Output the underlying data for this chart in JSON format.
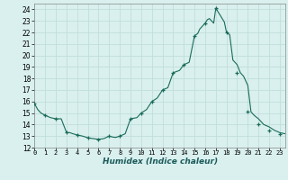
{
  "xlabel": "Humidex (Indice chaleur)",
  "x": [
    0,
    0.3,
    0.6,
    1,
    1.5,
    2,
    2.5,
    3,
    3.3,
    3.6,
    4,
    4.5,
    5,
    5.5,
    6,
    6.5,
    7,
    7.3,
    7.6,
    8,
    8.5,
    9,
    9.3,
    9.6,
    10,
    10.5,
    11,
    11.5,
    12,
    12.5,
    13,
    13.3,
    13.6,
    14,
    14.5,
    15,
    15.3,
    15.5,
    15.8,
    16,
    16.2,
    16.4,
    16.6,
    16.8,
    17,
    17.2,
    17.4,
    17.6,
    17.8,
    18,
    18.3,
    18.6,
    19,
    19.3,
    19.6,
    20,
    20.3,
    20.6,
    21,
    21.5,
    22,
    22.5,
    23,
    23.5
  ],
  "y": [
    15.8,
    15.3,
    15.0,
    14.8,
    14.6,
    14.5,
    14.5,
    13.3,
    13.3,
    13.2,
    13.1,
    13.0,
    12.85,
    12.78,
    12.72,
    12.78,
    13.0,
    12.92,
    12.88,
    13.0,
    13.2,
    14.5,
    14.55,
    14.6,
    15.0,
    15.3,
    16.0,
    16.3,
    17.0,
    17.2,
    18.5,
    18.6,
    18.7,
    19.2,
    19.4,
    21.7,
    21.9,
    22.3,
    22.6,
    22.8,
    23.1,
    23.2,
    23.0,
    22.8,
    24.1,
    23.8,
    23.5,
    23.2,
    22.9,
    22.0,
    21.8,
    19.6,
    19.2,
    18.5,
    18.2,
    17.4,
    15.1,
    14.8,
    14.5,
    14.0,
    13.8,
    13.5,
    13.3,
    13.2
  ],
  "marker_x": [
    0,
    1,
    2,
    3,
    4,
    5,
    6,
    7,
    8,
    9,
    10,
    11,
    12,
    13,
    14,
    15,
    16,
    17,
    18,
    19,
    20,
    21,
    22,
    23
  ],
  "marker_y": [
    15.8,
    14.8,
    14.5,
    13.3,
    13.1,
    12.85,
    12.72,
    13.0,
    13.0,
    14.5,
    15.0,
    16.0,
    17.0,
    18.5,
    19.2,
    21.7,
    22.8,
    24.1,
    22.0,
    18.5,
    15.1,
    14.0,
    13.5,
    13.2
  ],
  "line_color": "#1a6b5a",
  "bg_color": "#d9f0ee",
  "grid_major_color": "#c0dedd",
  "grid_minor_color": "#d0e9e8",
  "ylim": [
    12,
    24.5
  ],
  "xlim": [
    0,
    23.5
  ],
  "yticks": [
    12,
    13,
    14,
    15,
    16,
    17,
    18,
    19,
    20,
    21,
    22,
    23,
    24
  ],
  "xticks": [
    0,
    1,
    2,
    3,
    4,
    5,
    6,
    7,
    8,
    9,
    10,
    11,
    12,
    13,
    14,
    15,
    16,
    17,
    18,
    19,
    20,
    21,
    22,
    23
  ]
}
